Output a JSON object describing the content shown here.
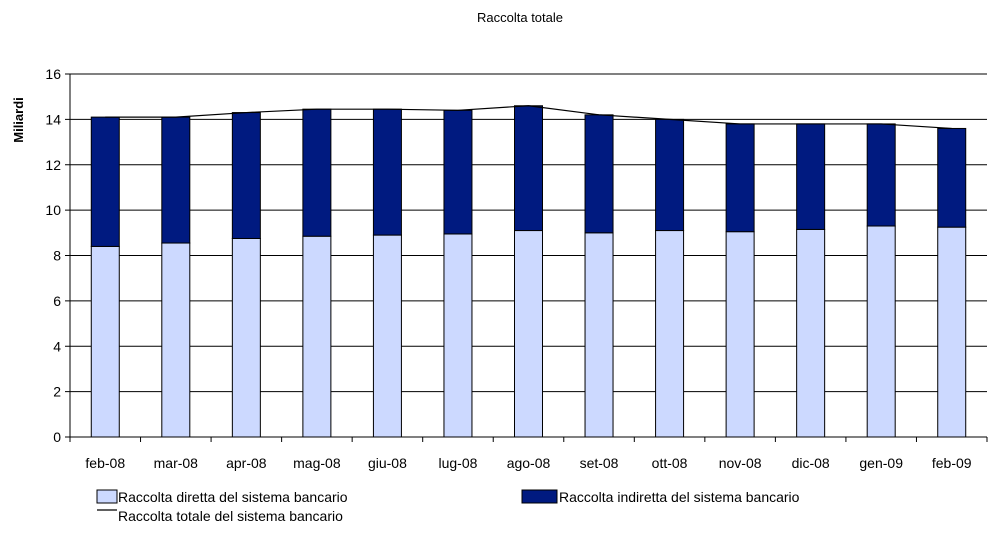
{
  "chart_data": {
    "type": "bar",
    "stacked": true,
    "title": "Raccolta totale",
    "ylabel": "Miliardi",
    "xlabel": "",
    "ylim": [
      0,
      16
    ],
    "yticks": [
      0,
      2,
      4,
      6,
      8,
      10,
      12,
      14,
      16
    ],
    "grid": "horizontal",
    "legend_position": "bottom",
    "categories": [
      "feb-08",
      "mar-08",
      "apr-08",
      "mag-08",
      "giu-08",
      "lug-08",
      "ago-08",
      "set-08",
      "ott-08",
      "nov-08",
      "dic-08",
      "gen-09",
      "feb-09"
    ],
    "series": [
      {
        "name": "Raccolta diretta del sistema bancario",
        "kind": "bar",
        "color": "#ccd9ff",
        "values": [
          8.4,
          8.55,
          8.75,
          8.85,
          8.9,
          8.95,
          9.1,
          9.0,
          9.1,
          9.05,
          9.15,
          9.3,
          9.25
        ]
      },
      {
        "name": "Raccolta indiretta del sistema bancario",
        "kind": "bar",
        "color": "#001a80",
        "values": [
          5.7,
          5.55,
          5.55,
          5.6,
          5.55,
          5.45,
          5.5,
          5.2,
          4.9,
          4.75,
          4.65,
          4.5,
          4.35
        ]
      },
      {
        "name": "Raccolta totale del sistema bancario",
        "kind": "line",
        "color": "#000000",
        "values": [
          14.1,
          14.1,
          14.3,
          14.45,
          14.45,
          14.4,
          14.6,
          14.2,
          14.0,
          13.8,
          13.8,
          13.8,
          13.6
        ]
      }
    ]
  }
}
